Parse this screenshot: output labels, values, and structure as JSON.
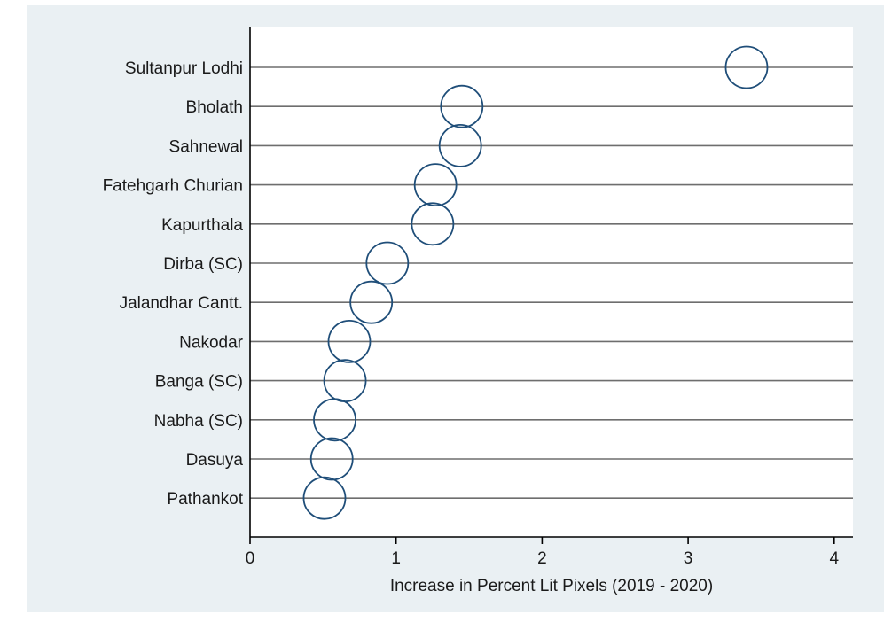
{
  "chart_data": {
    "type": "scatter",
    "xlabel": "Increase in Percent Lit Pixels (2019 - 2020)",
    "ylabel": "",
    "title": "",
    "xlim": [
      0,
      4.15
    ],
    "xticks": [
      "0",
      "1",
      "2",
      "3",
      "4"
    ],
    "grid": "horizontal lines at each category",
    "marker": "hollow circle",
    "colors": {
      "panel_background": "#eaf0f3",
      "plot_background": "#ffffff",
      "marker": "#1f4e79",
      "gridline": "#6e6e6e",
      "axis": "#000000"
    },
    "categories": [
      "Sultanpur Lodhi",
      "Bholath",
      "Sahnewal",
      "Fatehgarh Churian",
      "Kapurthala",
      "Dirba (SC)",
      "Jalandhar Cantt.",
      "Nakodar",
      "Banga (SC)",
      "Nabha (SC)",
      "Dasuya",
      "Pathankot"
    ],
    "values": [
      3.4,
      1.45,
      1.44,
      1.27,
      1.25,
      0.94,
      0.83,
      0.68,
      0.65,
      0.58,
      0.56,
      0.51
    ]
  }
}
